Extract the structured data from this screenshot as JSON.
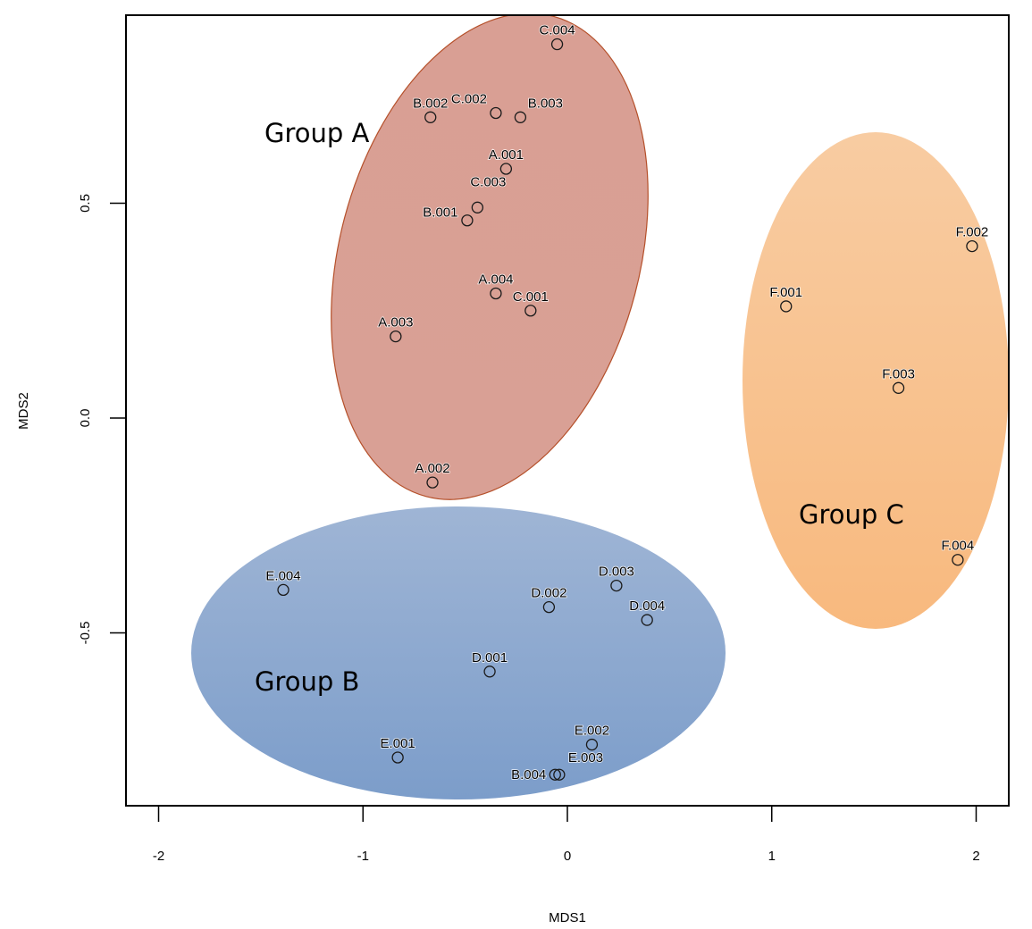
{
  "chart_data": {
    "type": "scatter",
    "title": "",
    "xlabel": "MDS1",
    "ylabel": "MDS2",
    "xlim": [
      -2.16,
      2.16
    ],
    "ylim": [
      -0.9,
      0.93
    ],
    "xticks": [
      -2,
      -1,
      0,
      1,
      2
    ],
    "xtick_labels": [
      "-2",
      "-1",
      "0",
      "1",
      "2"
    ],
    "yticks": [
      -0.5,
      0.0,
      0.5
    ],
    "ytick_labels": [
      "-0.5",
      "0.0",
      "0.5"
    ],
    "grid": false,
    "marker": "open-circle",
    "points": [
      {
        "label": "C.004",
        "x": -0.05,
        "y": 0.87
      },
      {
        "label": "B.002",
        "x": -0.67,
        "y": 0.7
      },
      {
        "label": "C.002",
        "x": -0.35,
        "y": 0.71
      },
      {
        "label": "B.003",
        "x": -0.23,
        "y": 0.7
      },
      {
        "label": "A.001",
        "x": -0.3,
        "y": 0.58
      },
      {
        "label": "C.003",
        "x": -0.44,
        "y": 0.49
      },
      {
        "label": "B.001",
        "x": -0.49,
        "y": 0.46
      },
      {
        "label": "A.004",
        "x": -0.35,
        "y": 0.29
      },
      {
        "label": "C.001",
        "x": -0.18,
        "y": 0.25
      },
      {
        "label": "A.003",
        "x": -0.84,
        "y": 0.19
      },
      {
        "label": "A.002",
        "x": -0.66,
        "y": -0.15
      },
      {
        "label": "F.002",
        "x": 1.98,
        "y": 0.4
      },
      {
        "label": "F.001",
        "x": 1.07,
        "y": 0.26
      },
      {
        "label": "F.003",
        "x": 1.62,
        "y": 0.07
      },
      {
        "label": "F.004",
        "x": 1.91,
        "y": -0.33
      },
      {
        "label": "E.004",
        "x": -1.39,
        "y": -0.4
      },
      {
        "label": "D.002",
        "x": -0.09,
        "y": -0.44
      },
      {
        "label": "D.003",
        "x": 0.24,
        "y": -0.39
      },
      {
        "label": "D.004",
        "x": 0.39,
        "y": -0.47
      },
      {
        "label": "D.001",
        "x": -0.38,
        "y": -0.59
      },
      {
        "label": "E.001",
        "x": -0.83,
        "y": -0.79
      },
      {
        "label": "E.002",
        "x": 0.12,
        "y": -0.76
      },
      {
        "label": "E.003",
        "x": -0.04,
        "y": -0.83
      },
      {
        "label": "B.004",
        "x": -0.06,
        "y": -0.83
      }
    ],
    "groups": [
      {
        "name": "Group A",
        "members": [
          "A.001",
          "A.002",
          "A.003",
          "A.004",
          "B.001",
          "B.002",
          "B.003",
          "C.001",
          "C.002",
          "C.003",
          "C.004"
        ],
        "fill_top": "#d99f94",
        "fill_bottom": "#d9a095",
        "stroke": "#b5502a"
      },
      {
        "name": "Group B",
        "members": [
          "D.001",
          "D.002",
          "D.003",
          "D.004",
          "E.001",
          "E.002",
          "E.003",
          "E.004",
          "B.004"
        ],
        "fill_top": "#9fb5d5",
        "fill_bottom": "#7c9dca",
        "stroke": "none"
      },
      {
        "name": "Group C",
        "members": [
          "F.001",
          "F.002",
          "F.003",
          "F.004"
        ],
        "fill_top": "#f8cca2",
        "fill_bottom": "#f8b97e",
        "stroke": "none"
      }
    ]
  }
}
